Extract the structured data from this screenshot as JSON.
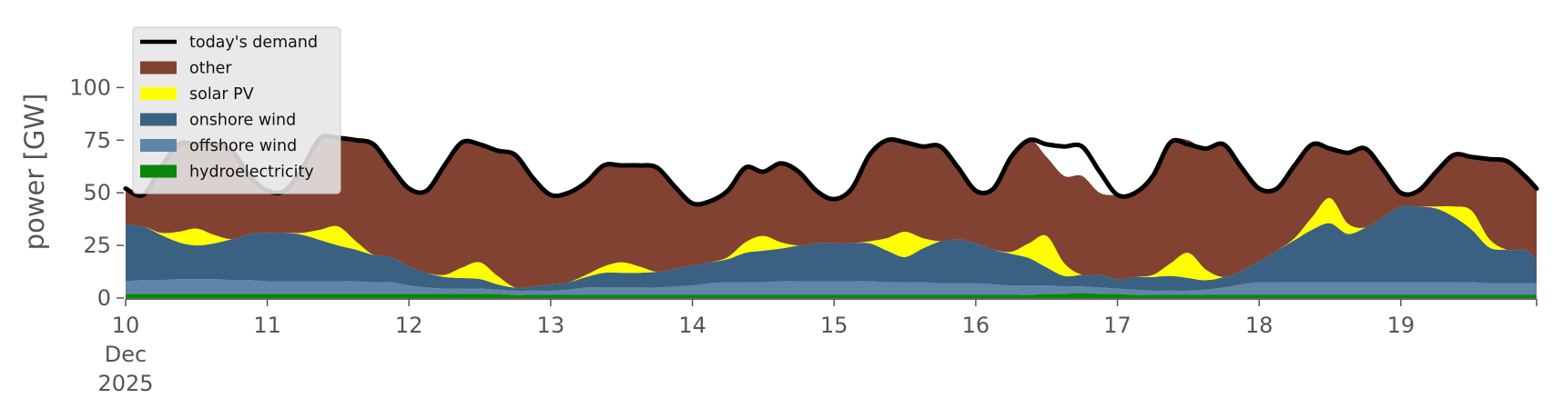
{
  "chart_data": {
    "type": "area",
    "title": "",
    "xlabel": "",
    "ylabel": "power [GW]",
    "ylim": [
      0,
      120
    ],
    "xlim": [
      "2025-12-10 00:00",
      "2025-12-19 23:00"
    ],
    "yticks": [
      0,
      25,
      50,
      75,
      100
    ],
    "xticks": [
      {
        "at": "2025-12-10",
        "label": "10",
        "sub": [
          "Dec",
          "2025"
        ]
      },
      {
        "at": "2025-12-11",
        "label": "11"
      },
      {
        "at": "2025-12-12",
        "label": "12"
      },
      {
        "at": "2025-12-13",
        "label": "13"
      },
      {
        "at": "2025-12-14",
        "label": "14"
      },
      {
        "at": "2025-12-15",
        "label": "15"
      },
      {
        "at": "2025-12-16",
        "label": "16"
      },
      {
        "at": "2025-12-17",
        "label": "17"
      },
      {
        "at": "2025-12-18",
        "label": "18"
      },
      {
        "at": "2025-12-19",
        "label": "19"
      }
    ],
    "grid": false,
    "legend_position": "top-left",
    "legend": [
      {
        "label": "today's demand",
        "kind": "line",
        "color": "#000000"
      },
      {
        "label": "other",
        "kind": "patch",
        "color": "#814232"
      },
      {
        "label": "solar PV",
        "kind": "patch",
        "color": "#ffff00"
      },
      {
        "label": "onshore wind",
        "kind": "patch",
        "color": "#3b6182"
      },
      {
        "label": "offshore wind",
        "kind": "patch",
        "color": "#5f85a9"
      },
      {
        "label": "hydroelectricity",
        "kind": "patch",
        "color": "#0a870a"
      }
    ],
    "x": [
      "2025-12-10 00:00",
      "2025-12-10 03:00",
      "2025-12-10 06:00",
      "2025-12-10 09:00",
      "2025-12-10 12:00",
      "2025-12-10 15:00",
      "2025-12-10 18:00",
      "2025-12-10 21:00",
      "2025-12-11 00:00",
      "2025-12-11 03:00",
      "2025-12-11 06:00",
      "2025-12-11 09:00",
      "2025-12-11 12:00",
      "2025-12-11 15:00",
      "2025-12-11 18:00",
      "2025-12-11 21:00",
      "2025-12-12 00:00",
      "2025-12-12 03:00",
      "2025-12-12 06:00",
      "2025-12-12 09:00",
      "2025-12-12 12:00",
      "2025-12-12 15:00",
      "2025-12-12 18:00",
      "2025-12-12 21:00",
      "2025-12-13 00:00",
      "2025-12-13 03:00",
      "2025-12-13 06:00",
      "2025-12-13 09:00",
      "2025-12-13 12:00",
      "2025-12-13 15:00",
      "2025-12-13 18:00",
      "2025-12-13 21:00",
      "2025-12-14 00:00",
      "2025-12-14 03:00",
      "2025-12-14 06:00",
      "2025-12-14 09:00",
      "2025-12-14 12:00",
      "2025-12-14 15:00",
      "2025-12-14 18:00",
      "2025-12-14 21:00",
      "2025-12-15 00:00",
      "2025-12-15 03:00",
      "2025-12-15 06:00",
      "2025-12-15 09:00",
      "2025-12-15 12:00",
      "2025-12-15 15:00",
      "2025-12-15 18:00",
      "2025-12-15 21:00",
      "2025-12-16 00:00",
      "2025-12-16 03:00",
      "2025-12-16 06:00",
      "2025-12-16 09:00",
      "2025-12-16 12:00",
      "2025-12-16 15:00",
      "2025-12-16 18:00",
      "2025-12-16 21:00",
      "2025-12-17 00:00",
      "2025-12-17 03:00",
      "2025-12-17 06:00",
      "2025-12-17 09:00",
      "2025-12-17 12:00",
      "2025-12-17 15:00",
      "2025-12-17 18:00",
      "2025-12-17 21:00",
      "2025-12-18 00:00",
      "2025-12-18 03:00",
      "2025-12-18 06:00",
      "2025-12-18 09:00",
      "2025-12-18 12:00",
      "2025-12-18 15:00",
      "2025-12-18 18:00",
      "2025-12-18 21:00",
      "2025-12-19 00:00",
      "2025-12-19 03:00",
      "2025-12-19 06:00",
      "2025-12-19 09:00",
      "2025-12-19 12:00",
      "2025-12-19 15:00",
      "2025-12-19 18:00",
      "2025-12-19 21:00",
      "2025-12-19 23:00"
    ],
    "demand": [
      52,
      49,
      62,
      73,
      73,
      73,
      70,
      58,
      51,
      51,
      62,
      76,
      76,
      75,
      73,
      62,
      52,
      51,
      63,
      74,
      73,
      70,
      68,
      57,
      49,
      50,
      55,
      63,
      63,
      63,
      62,
      53,
      45,
      46,
      51,
      62,
      60,
      64,
      60,
      51,
      47,
      52,
      68,
      75,
      74,
      72,
      72,
      62,
      51,
      52,
      67,
      75,
      73,
      72,
      72,
      60,
      49,
      50,
      58,
      74,
      73,
      71,
      73,
      62,
      52,
      52,
      63,
      73,
      71,
      69,
      71,
      61,
      50,
      51,
      60,
      68,
      67,
      66,
      65,
      58,
      52
    ],
    "series": [
      {
        "name": "hydroelectricity",
        "values": [
          2,
          2,
          2,
          2,
          2,
          2,
          2,
          2,
          2,
          2,
          2,
          2,
          2,
          2,
          2,
          2,
          2,
          2,
          2,
          2,
          2,
          2,
          1.5,
          1.5,
          1.5,
          1.5,
          1.5,
          1.5,
          1.5,
          1.5,
          1.5,
          1.5,
          1.5,
          1.5,
          1.5,
          1.5,
          1.5,
          1.5,
          1.5,
          1.5,
          1.5,
          1.5,
          1.5,
          1.5,
          1.5,
          1.5,
          1.5,
          1.5,
          1.5,
          1.5,
          1.5,
          1.5,
          2,
          2,
          2.5,
          2,
          2,
          1.5,
          1.5,
          1.5,
          1.5,
          1.5,
          1.5,
          1.5,
          1.5,
          1.5,
          1.5,
          1.5,
          1.5,
          1.5,
          1.5,
          1.5,
          1.5,
          1.5,
          1.5,
          1.5,
          1.5,
          1.5,
          1.5,
          1.5,
          1.5
        ]
      },
      {
        "name": "offshore wind",
        "values": [
          6,
          6.5,
          6.5,
          7,
          7,
          7,
          6.5,
          6.5,
          6,
          6,
          6,
          6,
          6,
          6,
          5.5,
          5.5,
          4,
          3,
          2.5,
          2.5,
          2.5,
          2,
          2,
          2,
          2,
          2.5,
          3.5,
          3.5,
          3.5,
          3.5,
          3.5,
          4,
          4.5,
          5.5,
          6,
          6,
          6,
          6.5,
          6.5,
          6.5,
          6.5,
          6.5,
          6.5,
          6,
          6,
          6,
          5.5,
          5.5,
          5.5,
          5,
          4.5,
          4.5,
          4,
          3.5,
          3,
          3,
          2.5,
          2.5,
          2,
          2,
          2,
          2.5,
          3.5,
          5,
          6,
          6,
          6,
          6,
          6,
          6,
          6,
          6,
          6,
          6,
          6,
          6,
          6,
          5.5,
          5.5,
          5.5,
          5.5
        ]
      },
      {
        "name": "onshore wind",
        "values": [
          27,
          25.5,
          21.5,
          17.5,
          16,
          17,
          19.5,
          22,
          23,
          23,
          22,
          19.5,
          17,
          15,
          13,
          12,
          9,
          7,
          5.5,
          5,
          4.5,
          2.5,
          1.5,
          2,
          3,
          3.5,
          5,
          7,
          7,
          7,
          7.5,
          8.5,
          9.5,
          10,
          11,
          14,
          15,
          15.5,
          17,
          18,
          18,
          18,
          18,
          15,
          12,
          16,
          20,
          21,
          19,
          16.5,
          15,
          13,
          8.5,
          5,
          5.5,
          6,
          4.5,
          6,
          6.5,
          7,
          6,
          4.5,
          5,
          6.5,
          10,
          15,
          20,
          25,
          28,
          23,
          26,
          31,
          36,
          36,
          35,
          31,
          25,
          17,
          16,
          16,
          11.5
        ]
      },
      {
        "name": "solar PV",
        "values": [
          0,
          0,
          1,
          5,
          8,
          4,
          0,
          0,
          0,
          0,
          1,
          5,
          9,
          4,
          0,
          0,
          0,
          0,
          1,
          5,
          8,
          4,
          0,
          0,
          0,
          0,
          1,
          3,
          5,
          3,
          0,
          0,
          0,
          0,
          1,
          5,
          7,
          3,
          0,
          0,
          0,
          0,
          1,
          6,
          12,
          5,
          0,
          0,
          0,
          0,
          1,
          7,
          15,
          6,
          0,
          0,
          0,
          0,
          1,
          6,
          12,
          5,
          0,
          0,
          0,
          0,
          1,
          6,
          12,
          5,
          0,
          0,
          0,
          0,
          1,
          5,
          9,
          4,
          0,
          0,
          0
        ]
      },
      {
        "name": "other",
        "values": [
          17,
          15,
          31,
          41.5,
          40,
          43,
          42,
          27.5,
          20,
          20,
          31,
          43.5,
          42,
          48,
          52.5,
          42.5,
          37,
          39,
          52,
          59.5,
          55,
          59.5,
          63,
          51.5,
          42.5,
          42.5,
          44,
          48,
          46,
          48,
          50,
          39,
          29.5,
          29,
          32.5,
          35.5,
          30.5,
          37.5,
          35,
          25,
          21,
          26,
          41,
          47.5,
          42.5,
          43.5,
          45,
          34,
          25,
          29.5,
          45,
          49.5,
          37.5,
          41.5,
          47,
          39,
          40,
          40,
          47,
          57.5,
          53.5,
          56.5,
          63,
          49.5,
          34.5,
          29.5,
          34.5,
          34.5,
          23.5,
          33.5,
          37.5,
          22.5,
          6.5,
          7.5,
          16.5,
          24.5,
          25.5,
          37.5,
          42,
          35,
          33.5
        ]
      }
    ]
  }
}
